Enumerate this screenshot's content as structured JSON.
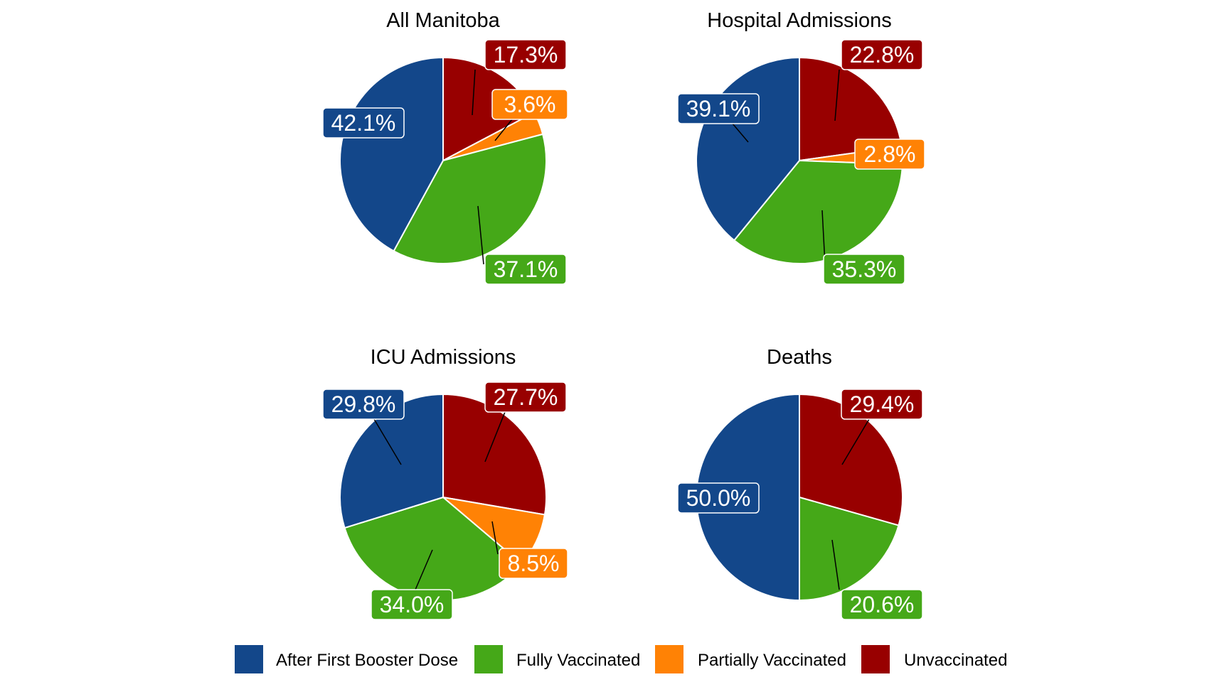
{
  "chart_data": {
    "type": "pie",
    "categories": [
      "After First Booster Dose",
      "Fully Vaccinated",
      "Partially Vaccinated",
      "Unvaccinated"
    ],
    "colors": {
      "After First Booster Dose": "#13478A",
      "Fully Vaccinated": "#45A818",
      "Partially Vaccinated": "#FF8205",
      "Unvaccinated": "#980000"
    },
    "legend_position": "bottom",
    "panels": [
      {
        "title": "All Manitoba",
        "slices": [
          {
            "category": "Unvaccinated",
            "value": 17.3,
            "label": "17.3%"
          },
          {
            "category": "Partially Vaccinated",
            "value": 3.6,
            "label": "3.6%"
          },
          {
            "category": "Fully Vaccinated",
            "value": 37.1,
            "label": "37.1%"
          },
          {
            "category": "After First Booster Dose",
            "value": 42.1,
            "label": "42.1%"
          }
        ]
      },
      {
        "title": "Hospital Admissions",
        "slices": [
          {
            "category": "Unvaccinated",
            "value": 22.8,
            "label": "22.8%"
          },
          {
            "category": "Partially Vaccinated",
            "value": 2.8,
            "label": "2.8%"
          },
          {
            "category": "Fully Vaccinated",
            "value": 35.3,
            "label": "35.3%"
          },
          {
            "category": "After First Booster Dose",
            "value": 39.1,
            "label": "39.1%"
          }
        ]
      },
      {
        "title": "ICU Admissions",
        "slices": [
          {
            "category": "Unvaccinated",
            "value": 27.7,
            "label": "27.7%"
          },
          {
            "category": "Partially Vaccinated",
            "value": 8.5,
            "label": "8.5%"
          },
          {
            "category": "Fully Vaccinated",
            "value": 34.0,
            "label": "34.0%"
          },
          {
            "category": "After First Booster Dose",
            "value": 29.8,
            "label": "29.8%"
          }
        ]
      },
      {
        "title": "Deaths",
        "slices": [
          {
            "category": "Unvaccinated",
            "value": 29.4,
            "label": "29.4%"
          },
          {
            "category": "Partially Vaccinated",
            "value": 0.0,
            "label": ""
          },
          {
            "category": "Fully Vaccinated",
            "value": 20.6,
            "label": "20.6%"
          },
          {
            "category": "After First Booster Dose",
            "value": 50.0,
            "label": "50.0%"
          }
        ]
      }
    ]
  }
}
